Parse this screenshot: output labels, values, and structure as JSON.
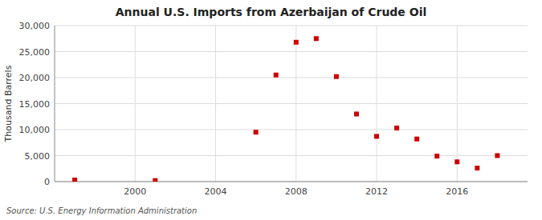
{
  "chart_data": {
    "type": "scatter",
    "title": "Annual U.S. Imports from Azerbaijan of Crude Oil",
    "y_label": "Thousand Barrels",
    "annotation": "Source: U.S. Energy Information Administration",
    "x": [
      1997,
      2001,
      2006,
      2007,
      2008,
      2009,
      2010,
      2011,
      2012,
      2013,
      2014,
      2015,
      2016,
      2017,
      2018
    ],
    "values": [
      300,
      200,
      9500,
      20500,
      26800,
      27500,
      20200,
      13000,
      8700,
      10300,
      8200,
      4900,
      3800,
      2600,
      5000
    ],
    "color": "#cc0000",
    "marker": "square",
    "xlim": [
      1996,
      2019.5
    ],
    "ylim": [
      0,
      30000
    ],
    "xticks": [
      2000,
      2004,
      2008,
      2012,
      2016
    ],
    "yticks": [
      0,
      {
        "value": 5000,
        "label": "5,000"
      },
      {
        "value": 10000,
        "label": "10,000"
      },
      {
        "value": 15000,
        "label": "15,000"
      },
      {
        "value": 20000,
        "label": "20,000"
      },
      {
        "value": 25000,
        "label": "25,000"
      },
      {
        "value": 30000,
        "label": "30,000"
      }
    ],
    "grid": true
  }
}
